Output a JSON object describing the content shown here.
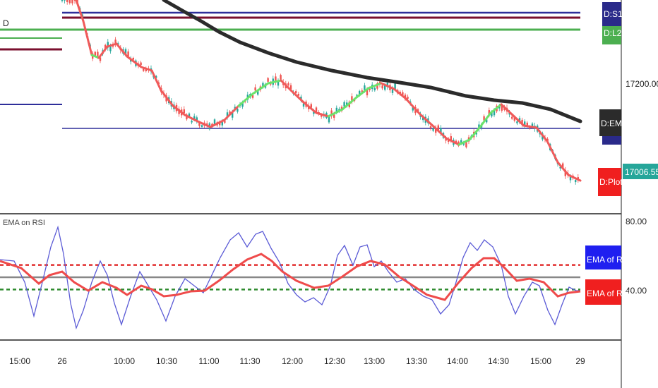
{
  "chart_data": [
    {
      "type": "line",
      "panel": "price",
      "title": "",
      "series_label": "D",
      "yaxis_ticks": [
        "17200.00"
      ],
      "last_price": "17006.55",
      "labels": {
        "s1": "D:S1",
        "l2": "D:L2",
        "ema": "D:EMA",
        "plot": "D:Plot"
      },
      "colors": {
        "ema": "#2b2b2b",
        "plot_down": "#f05a5a",
        "plot_up": "#6be36b",
        "candle_up": "#26a69a",
        "candle_down": "#ef5350",
        "s1": "#2a2a8a",
        "l2": "#4caf50",
        "maroon": "#7a0f2e",
        "navy": "#2e2e9a",
        "price_badge": "#26a69a"
      }
    },
    {
      "type": "line",
      "panel": "oscillator",
      "title": "EMA on RSI",
      "yaxis_ticks": [
        "80.00",
        "40.00"
      ],
      "ylim": [
        0,
        100
      ],
      "levels": {
        "upper": 60,
        "middle": 50,
        "lower": 40
      },
      "legend": [
        "EMA of RSI",
        "EMA of RSI"
      ],
      "colors": {
        "rsi": "#5b5bd6",
        "ema": "#ef4b4b",
        "upper": "#e23030",
        "middle": "#888888",
        "lower": "#2e8b2e",
        "badge_blue": "#1f1ff0",
        "badge_red": "#f01f1f"
      }
    }
  ],
  "xaxis_ticks": [
    "15:00",
    "26",
    "10:00",
    "10:30",
    "11:00",
    "11:30",
    "12:00",
    "12:30",
    "13:00",
    "13:30",
    "14:00",
    "14:30",
    "15:00",
    "29"
  ]
}
